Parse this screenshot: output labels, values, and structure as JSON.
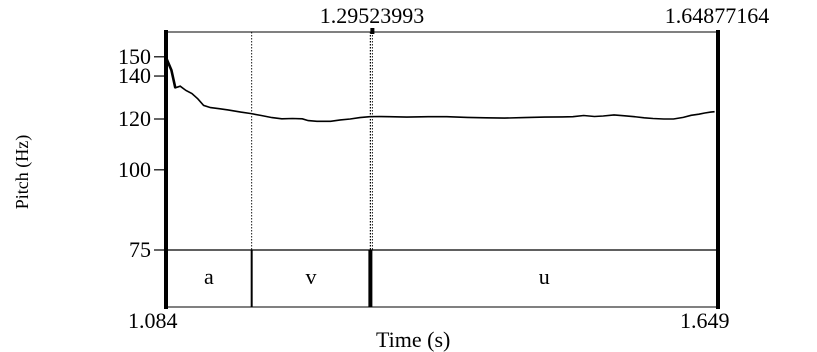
{
  "chart_data": {
    "type": "line",
    "title": "",
    "xlabel": "Time (s)",
    "ylabel": "Pitch (Hz)",
    "xlim": [
      1.084,
      1.649
    ],
    "ylim": [
      75,
      150
    ],
    "x_start_label": "1.084",
    "x_end_label": "1.649",
    "y_ticks": [
      150,
      140,
      120,
      100,
      75
    ],
    "top_markers": [
      {
        "label": "1.29523993",
        "time": 1.29523993
      },
      {
        "label": "1.64877164",
        "time": 1.64877164
      }
    ],
    "segments": [
      {
        "label": "a",
        "start": 1.084,
        "end": 1.1717
      },
      {
        "label": "v",
        "start": 1.1717,
        "end": 1.2932
      },
      {
        "label": "u",
        "start": 1.2932,
        "end": 1.649
      }
    ],
    "series": [
      {
        "values": [
          [
            1.0845,
            149.0
          ],
          [
            1.0895,
            143.0
          ],
          [
            1.0935,
            134.2
          ],
          [
            1.0985,
            135.0
          ],
          [
            1.1045,
            132.9
          ],
          [
            1.1105,
            131.5
          ],
          [
            1.1165,
            129.0
          ],
          [
            1.1225,
            126.0
          ],
          [
            1.1295,
            125.0
          ],
          [
            1.1385,
            124.5
          ],
          [
            1.1475,
            124.0
          ],
          [
            1.1605,
            123.0
          ],
          [
            1.1705,
            122.4
          ],
          [
            1.1815,
            121.5
          ],
          [
            1.1925,
            120.6
          ],
          [
            1.2025,
            120.1
          ],
          [
            1.2135,
            120.2
          ],
          [
            1.2235,
            120.1
          ],
          [
            1.2295,
            119.3
          ],
          [
            1.2385,
            119.0
          ],
          [
            1.2525,
            119.0
          ],
          [
            1.2625,
            119.6
          ],
          [
            1.2725,
            120.0
          ],
          [
            1.2825,
            120.6
          ],
          [
            1.2925,
            121.0
          ],
          [
            1.3025,
            121.1
          ],
          [
            1.3125,
            121.0
          ],
          [
            1.3305,
            120.8
          ],
          [
            1.3525,
            121.0
          ],
          [
            1.3715,
            121.0
          ],
          [
            1.3925,
            120.7
          ],
          [
            1.4115,
            120.5
          ],
          [
            1.4305,
            120.4
          ],
          [
            1.4505,
            120.6
          ],
          [
            1.4715,
            120.8
          ],
          [
            1.4895,
            120.9
          ],
          [
            1.5005,
            121.0
          ],
          [
            1.5115,
            121.5
          ],
          [
            1.5225,
            121.1
          ],
          [
            1.5315,
            121.3
          ],
          [
            1.5425,
            121.8
          ],
          [
            1.5535,
            121.4
          ],
          [
            1.5635,
            121.0
          ],
          [
            1.5735,
            120.5
          ],
          [
            1.5825,
            120.2
          ],
          [
            1.5935,
            120.0
          ],
          [
            1.6035,
            120.0
          ],
          [
            1.6135,
            120.7
          ],
          [
            1.6215,
            121.6
          ],
          [
            1.6295,
            122.1
          ],
          [
            1.6355,
            122.6
          ],
          [
            1.6415,
            123.0
          ],
          [
            1.6455,
            123.2
          ]
        ]
      }
    ]
  }
}
